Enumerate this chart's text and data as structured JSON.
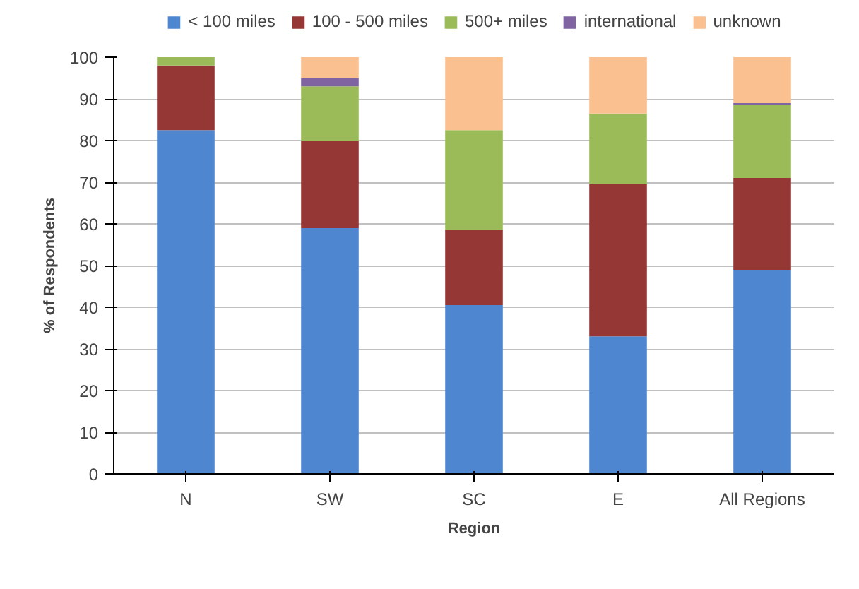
{
  "chart_data": {
    "type": "bar",
    "stacked": true,
    "xlabel": "Region",
    "ylabel": "% of Respondents",
    "categories": [
      "N",
      "SW",
      "SC",
      "E",
      "All Regions"
    ],
    "series": [
      {
        "name": "< 100 miles",
        "color": "#4f86d0",
        "values": [
          82.5,
          59,
          40.5,
          33,
          49
        ]
      },
      {
        "name": "100 - 500 miles",
        "color": "#953735",
        "values": [
          15.5,
          21,
          18,
          36.5,
          22
        ]
      },
      {
        "name": "500+ miles",
        "color": "#9bbb59",
        "values": [
          2,
          13,
          24,
          17,
          17.5
        ]
      },
      {
        "name": "international",
        "color": "#8064a2",
        "values": [
          0,
          2,
          0,
          0,
          0.5
        ]
      },
      {
        "name": "unknown",
        "color": "#fac090",
        "values": [
          0,
          5,
          17.5,
          13.5,
          11
        ]
      }
    ],
    "ylim": [
      0,
      100
    ],
    "yticks": [
      0,
      10,
      20,
      30,
      40,
      50,
      60,
      70,
      80,
      90,
      100
    ],
    "grid": "y",
    "legend": "top"
  }
}
